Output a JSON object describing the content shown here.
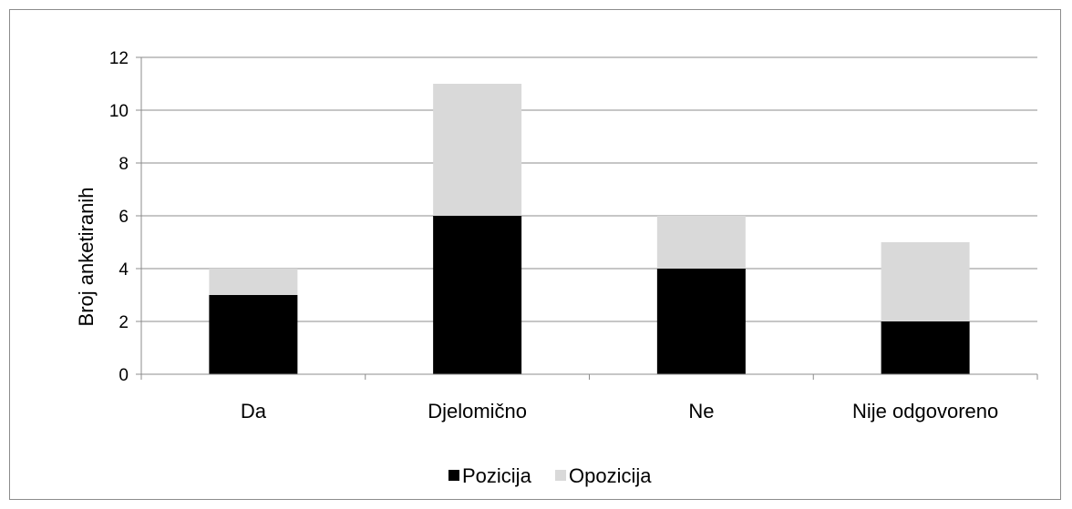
{
  "chart_data": {
    "type": "bar",
    "stacked": true,
    "categories": [
      "Da",
      "Djelomično",
      "Ne",
      "Nije odgovoreno"
    ],
    "series": [
      {
        "name": "Pozicija",
        "values": [
          3,
          6,
          4,
          2
        ],
        "color": "#000000"
      },
      {
        "name": "Opozicija",
        "values": [
          1,
          5,
          2,
          3
        ],
        "color": "#d9d9d9"
      }
    ],
    "title": "",
    "xlabel": "",
    "ylabel": "Broj anketiranih",
    "ylim": [
      0,
      12
    ],
    "yticks": [
      0,
      2,
      4,
      6,
      8,
      10,
      12
    ],
    "grid": true,
    "legend_position": "bottom",
    "colors": {
      "gridline": "#8c8c8c",
      "axis": "#8c8c8c",
      "frame": "#8c8c8c"
    }
  }
}
